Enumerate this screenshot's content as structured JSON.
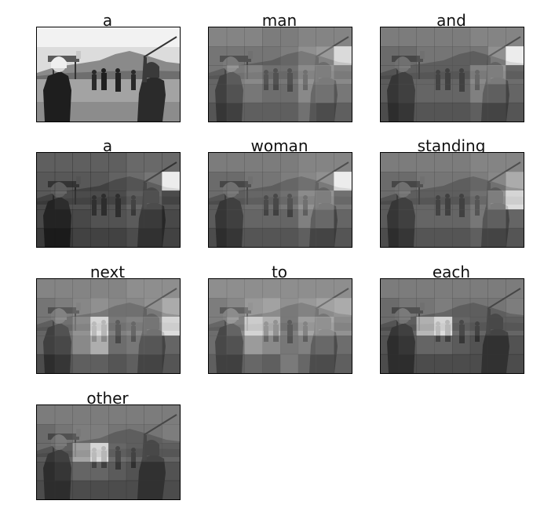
{
  "figure": {
    "panels": [
      {
        "word": "a",
        "attention": [
          [
            0.05,
            0.05,
            0.05,
            0.05,
            0.05,
            0.05,
            0.05,
            0.05
          ],
          [
            0.05,
            0.05,
            0.05,
            0.05,
            0.05,
            0.05,
            0.05,
            0.05
          ],
          [
            0.05,
            0.05,
            0.05,
            0.05,
            0.05,
            0.05,
            0.05,
            0.05
          ],
          [
            0.05,
            0.05,
            0.05,
            0.05,
            0.05,
            0.05,
            0.05,
            0.05
          ],
          [
            0.05,
            0.05,
            0.05,
            0.05,
            0.05,
            0.05,
            0.05,
            0.05
          ]
        ],
        "original": true
      },
      {
        "word": "man",
        "attention": [
          [
            0.35,
            0.35,
            0.35,
            0.3,
            0.3,
            0.35,
            0.35,
            0.35
          ],
          [
            0.3,
            0.3,
            0.3,
            0.3,
            0.35,
            0.45,
            0.5,
            0.85
          ],
          [
            0.3,
            0.45,
            0.5,
            0.4,
            0.4,
            0.55,
            0.6,
            0.5
          ],
          [
            0.3,
            0.4,
            0.4,
            0.35,
            0.35,
            0.5,
            0.55,
            0.4
          ],
          [
            0.25,
            0.3,
            0.3,
            0.3,
            0.3,
            0.4,
            0.35,
            0.3
          ]
        ]
      },
      {
        "word": "and",
        "attention": [
          [
            0.3,
            0.3,
            0.3,
            0.3,
            0.3,
            0.35,
            0.35,
            0.35
          ],
          [
            0.25,
            0.25,
            0.3,
            0.3,
            0.3,
            0.3,
            0.45,
            0.95
          ],
          [
            0.25,
            0.3,
            0.3,
            0.3,
            0.3,
            0.5,
            0.6,
            0.35
          ],
          [
            0.25,
            0.3,
            0.3,
            0.3,
            0.3,
            0.45,
            0.45,
            0.3
          ],
          [
            0.2,
            0.25,
            0.25,
            0.25,
            0.25,
            0.3,
            0.3,
            0.25
          ]
        ]
      },
      {
        "word": "a",
        "attention": [
          [
            0.15,
            0.15,
            0.15,
            0.15,
            0.15,
            0.2,
            0.2,
            0.2
          ],
          [
            0.15,
            0.15,
            0.15,
            0.15,
            0.2,
            0.25,
            0.3,
            0.95
          ],
          [
            0.15,
            0.2,
            0.2,
            0.2,
            0.2,
            0.3,
            0.35,
            0.2
          ],
          [
            0.15,
            0.15,
            0.15,
            0.2,
            0.2,
            0.25,
            0.25,
            0.15
          ],
          [
            0.1,
            0.1,
            0.15,
            0.15,
            0.15,
            0.2,
            0.2,
            0.15
          ]
        ]
      },
      {
        "word": "woman",
        "attention": [
          [
            0.3,
            0.3,
            0.3,
            0.3,
            0.3,
            0.35,
            0.35,
            0.35
          ],
          [
            0.25,
            0.25,
            0.3,
            0.3,
            0.35,
            0.4,
            0.45,
            0.95
          ],
          [
            0.25,
            0.3,
            0.35,
            0.35,
            0.4,
            0.55,
            0.6,
            0.4
          ],
          [
            0.25,
            0.3,
            0.3,
            0.3,
            0.3,
            0.45,
            0.5,
            0.3
          ],
          [
            0.2,
            0.25,
            0.25,
            0.25,
            0.25,
            0.3,
            0.3,
            0.25
          ]
        ]
      },
      {
        "word": "standing",
        "attention": [
          [
            0.3,
            0.3,
            0.3,
            0.3,
            0.3,
            0.35,
            0.35,
            0.35
          ],
          [
            0.25,
            0.25,
            0.3,
            0.3,
            0.3,
            0.35,
            0.4,
            0.6
          ],
          [
            0.25,
            0.3,
            0.3,
            0.3,
            0.3,
            0.4,
            0.6,
            0.95
          ],
          [
            0.25,
            0.3,
            0.3,
            0.3,
            0.3,
            0.4,
            0.45,
            0.3
          ],
          [
            0.2,
            0.25,
            0.25,
            0.25,
            0.25,
            0.3,
            0.3,
            0.25
          ]
        ]
      },
      {
        "word": "next",
        "attention": [
          [
            0.35,
            0.35,
            0.35,
            0.35,
            0.35,
            0.4,
            0.4,
            0.4
          ],
          [
            0.3,
            0.35,
            0.4,
            0.45,
            0.4,
            0.4,
            0.45,
            0.6
          ],
          [
            0.3,
            0.4,
            0.55,
            0.95,
            0.45,
            0.5,
            0.55,
            0.95
          ],
          [
            0.3,
            0.35,
            0.5,
            0.7,
            0.35,
            0.4,
            0.4,
            0.3
          ],
          [
            0.2,
            0.25,
            0.3,
            0.3,
            0.25,
            0.3,
            0.3,
            0.25
          ]
        ]
      },
      {
        "word": "to",
        "attention": [
          [
            0.4,
            0.4,
            0.4,
            0.4,
            0.4,
            0.4,
            0.4,
            0.4
          ],
          [
            0.35,
            0.4,
            0.5,
            0.55,
            0.45,
            0.5,
            0.55,
            0.6
          ],
          [
            0.35,
            0.5,
            0.9,
            0.75,
            0.45,
            0.65,
            0.7,
            0.55
          ],
          [
            0.35,
            0.4,
            0.6,
            0.5,
            0.4,
            0.45,
            0.5,
            0.35
          ],
          [
            0.3,
            0.3,
            0.35,
            0.3,
            0.45,
            0.35,
            0.35,
            0.3
          ]
        ]
      },
      {
        "word": "each",
        "attention": [
          [
            0.3,
            0.3,
            0.3,
            0.3,
            0.3,
            0.3,
            0.3,
            0.3
          ],
          [
            0.25,
            0.3,
            0.3,
            0.35,
            0.3,
            0.3,
            0.3,
            0.35
          ],
          [
            0.25,
            0.3,
            0.75,
            0.95,
            0.35,
            0.3,
            0.3,
            0.3
          ],
          [
            0.2,
            0.25,
            0.3,
            0.3,
            0.25,
            0.2,
            0.2,
            0.2
          ],
          [
            0.2,
            0.2,
            0.2,
            0.2,
            0.2,
            0.2,
            0.2,
            0.2
          ]
        ]
      },
      {
        "word": "other",
        "attention": [
          [
            0.3,
            0.3,
            0.3,
            0.3,
            0.3,
            0.3,
            0.3,
            0.3
          ],
          [
            0.25,
            0.3,
            0.35,
            0.35,
            0.3,
            0.3,
            0.3,
            0.35
          ],
          [
            0.25,
            0.3,
            0.65,
            0.95,
            0.35,
            0.3,
            0.3,
            0.3
          ],
          [
            0.2,
            0.25,
            0.3,
            0.3,
            0.25,
            0.2,
            0.2,
            0.2
          ],
          [
            0.2,
            0.2,
            0.2,
            0.2,
            0.2,
            0.2,
            0.2,
            0.2
          ]
        ]
      }
    ]
  }
}
